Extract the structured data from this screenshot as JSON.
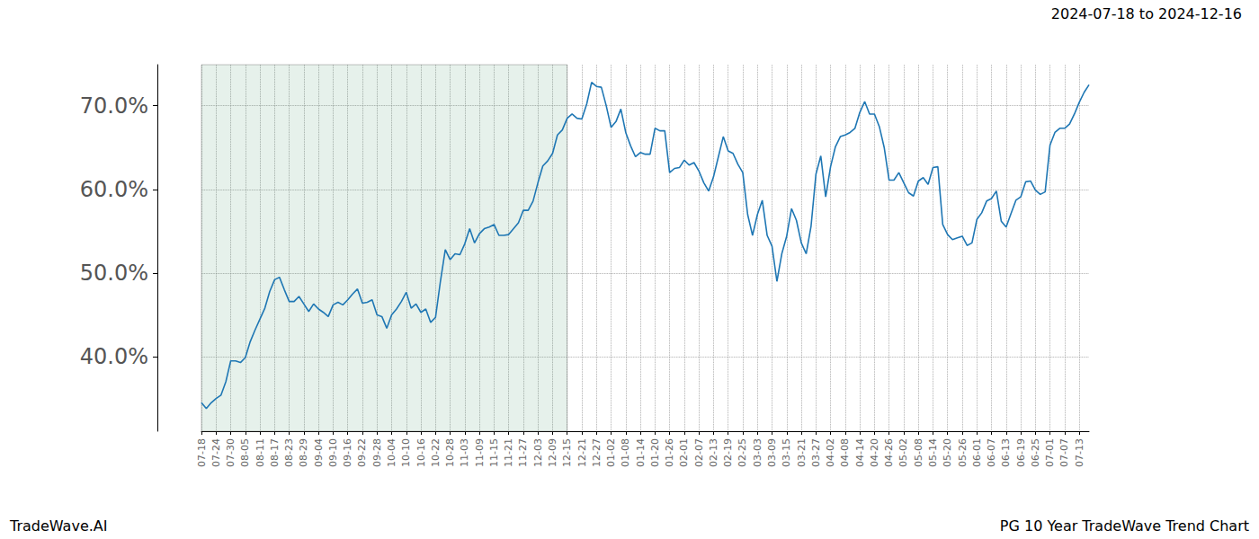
{
  "chart_data": {
    "type": "line",
    "title": "PG 10 Year TradeWave Trend Chart",
    "subtitle": "2024-07-18 to 2024-12-16",
    "annotations": [
      "TradeWave.AI"
    ],
    "categories": [
      "07-18",
      null,
      null,
      "07-24",
      null,
      null,
      "07-30",
      null,
      null,
      "08-05",
      null,
      null,
      "08-11",
      null,
      null,
      "08-17",
      null,
      null,
      "08-23",
      null,
      null,
      "08-29",
      null,
      null,
      "09-04",
      null,
      null,
      "09-10",
      null,
      null,
      "09-16",
      null,
      null,
      "09-22",
      null,
      null,
      "09-28",
      null,
      null,
      "10-04",
      null,
      null,
      "10-10",
      null,
      null,
      "10-16",
      null,
      null,
      "10-22",
      null,
      null,
      "10-28",
      null,
      null,
      "11-03",
      null,
      null,
      "11-09",
      null,
      null,
      "11-15",
      null,
      null,
      "11-21",
      null,
      null,
      "11-27",
      null,
      null,
      "12-03",
      null,
      null,
      "12-09",
      null,
      null,
      "12-15",
      null,
      null,
      "12-21",
      null,
      null,
      "12-27",
      null,
      null,
      "01-02",
      null,
      null,
      "01-08",
      null,
      null,
      "01-14",
      null,
      null,
      "01-20",
      null,
      null,
      "01-26",
      null,
      null,
      "02-01",
      null,
      null,
      "02-07",
      null,
      null,
      "02-13",
      null,
      null,
      "02-19",
      null,
      null,
      "02-25",
      null,
      null,
      "03-03",
      null,
      null,
      "03-09",
      null,
      null,
      "03-15",
      null,
      null,
      "03-21",
      null,
      null,
      "03-27",
      null,
      null,
      "04-02",
      null,
      null,
      "04-08",
      null,
      null,
      "04-14",
      null,
      null,
      "04-20",
      null,
      null,
      "04-26",
      null,
      null,
      "05-02",
      null,
      null,
      "05-08",
      null,
      null,
      "05-14",
      null,
      null,
      "05-20",
      null,
      null,
      "05-26",
      null,
      null,
      "06-01",
      null,
      null,
      "06-07",
      null,
      null,
      "06-13",
      null,
      null,
      "06-19",
      null,
      null,
      "06-25",
      null,
      null,
      "07-01",
      null,
      null,
      "07-07",
      null,
      null,
      "07-13",
      null,
      null
    ],
    "values": [
      34.5,
      33.8,
      34.5,
      35,
      35.4,
      37,
      39.5,
      39.5,
      39.3,
      39.9,
      41.8,
      43.2,
      44.5,
      45.8,
      47.8,
      49.2,
      49.5,
      48,
      46.6,
      46.6,
      47.2,
      46.3,
      45.4,
      46.3,
      45.7,
      45.3,
      44.8,
      46.2,
      46.5,
      46.2,
      46.8,
      47.5,
      48.1,
      46.4,
      46.5,
      46.8,
      45,
      44.8,
      43.4,
      45,
      45.7,
      46.6,
      47.7,
      45.8,
      46.3,
      45.3,
      45.7,
      44.1,
      44.7,
      49,
      52.8,
      51.6,
      52.3,
      52.2,
      53.5,
      55.3,
      53.6,
      54.7,
      55.3,
      55.5,
      55.8,
      54.5,
      54.5,
      54.6,
      55.3,
      56,
      57.5,
      57.5,
      58.6,
      60.8,
      62.8,
      63.4,
      64.3,
      66.5,
      67.1,
      68.5,
      69,
      68.5,
      68.4,
      70.2,
      72.8,
      72.3,
      72.2,
      70,
      67.4,
      68.1,
      69.6,
      66.8,
      65.2,
      63.9,
      64.4,
      64.2,
      64.2,
      67.3,
      67,
      67,
      62,
      62.5,
      62.6,
      63.5,
      62.9,
      63.2,
      62.2,
      60.8,
      59.8,
      61.5,
      63.9,
      66.3,
      64.6,
      64.3,
      63,
      62,
      57,
      54.5,
      57,
      58.7,
      54.5,
      53.2,
      49,
      52.3,
      54.4,
      57.7,
      56.3,
      53.6,
      52.3,
      55.6,
      61.8,
      64,
      59.1,
      62.7,
      65.1,
      66.3,
      66.5,
      66.8,
      67.3,
      69.2,
      70.5,
      69,
      69,
      67.5,
      65,
      61.1,
      61.1,
      62,
      60.8,
      59.6,
      59.2,
      61,
      61.4,
      60.6,
      62.6,
      62.7,
      55.8,
      54.6,
      54,
      54.2,
      54.4,
      53.3,
      53.6,
      56.4,
      57.2,
      58.6,
      58.9,
      59.8,
      56.2,
      55.5,
      57.1,
      58.7,
      59.1,
      60.9,
      61,
      59.9,
      59.4,
      59.7,
      65.3,
      66.8,
      67.3,
      67.3,
      67.8,
      69,
      70.4,
      71.6,
      72.5
    ],
    "shaded": [
      "07-18",
      "12-15"
    ],
    "color": "#1f77b4",
    "ylim": [
      31.1,
      74.9
    ],
    "yticks": [
      {
        "value": 40,
        "label": "40.0%"
      },
      {
        "value": 50,
        "label": "50.0%"
      },
      {
        "value": 60,
        "label": "60.0%"
      },
      {
        "value": 70,
        "label": "70.0%"
      }
    ],
    "grid": true
  }
}
